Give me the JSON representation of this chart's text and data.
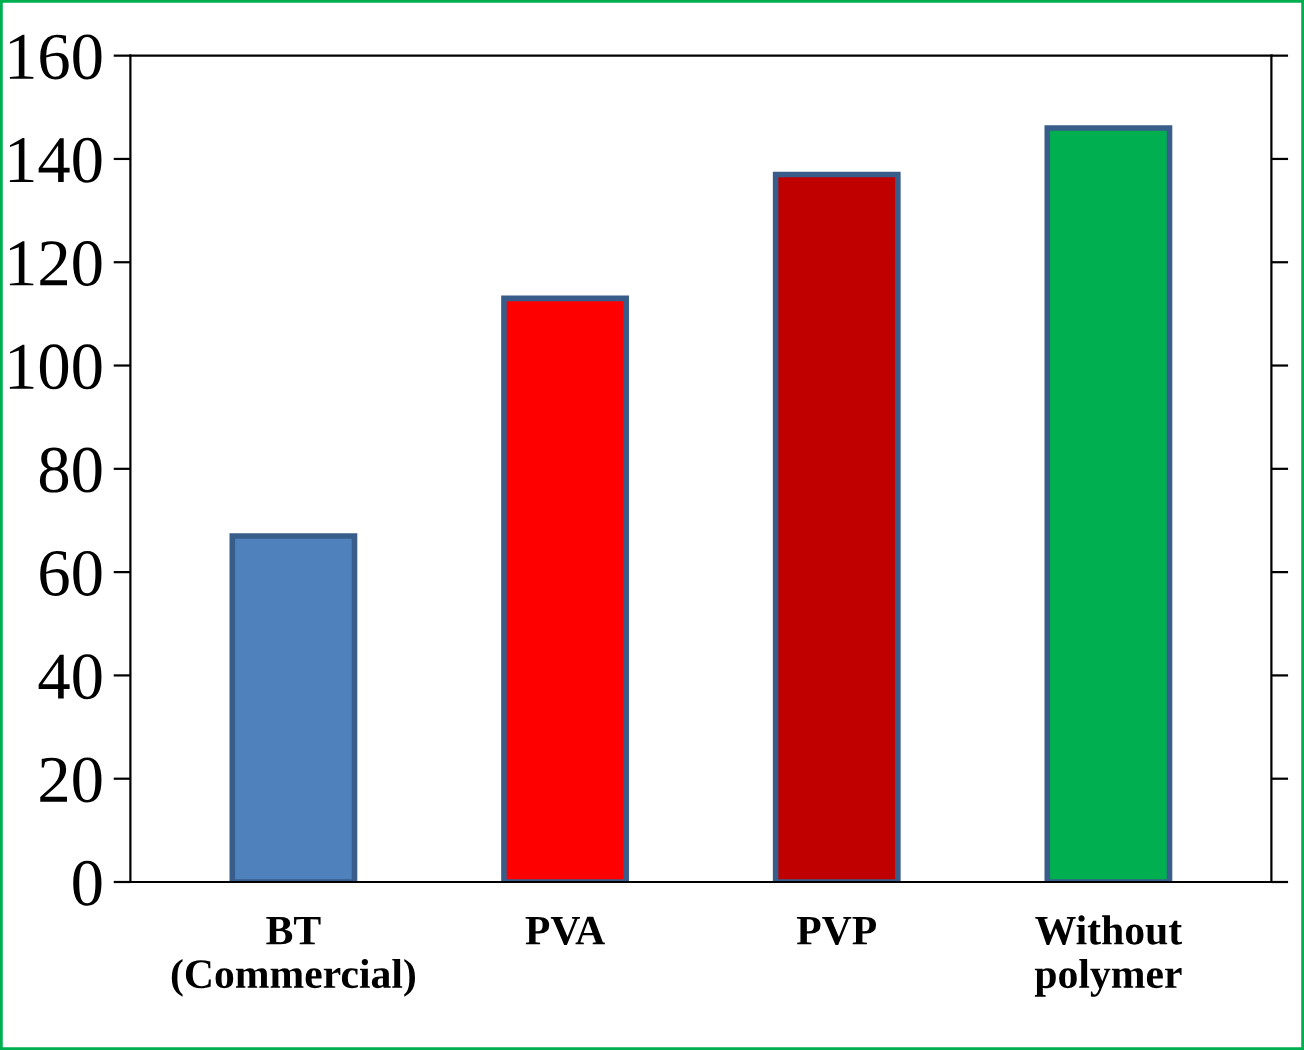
{
  "chart_data": {
    "type": "bar",
    "categories": [
      "BT\n(Commercial)",
      "PVA",
      "PVP",
      "Without\npolymer"
    ],
    "values": [
      67,
      113,
      137,
      146
    ],
    "colors": [
      "#4f81bd",
      "#ff0000",
      "#c00000",
      "#00b050"
    ],
    "ylim": [
      0,
      160
    ],
    "yticks": [
      0,
      20,
      40,
      60,
      80,
      100,
      120,
      140,
      160
    ],
    "grid": false
  }
}
